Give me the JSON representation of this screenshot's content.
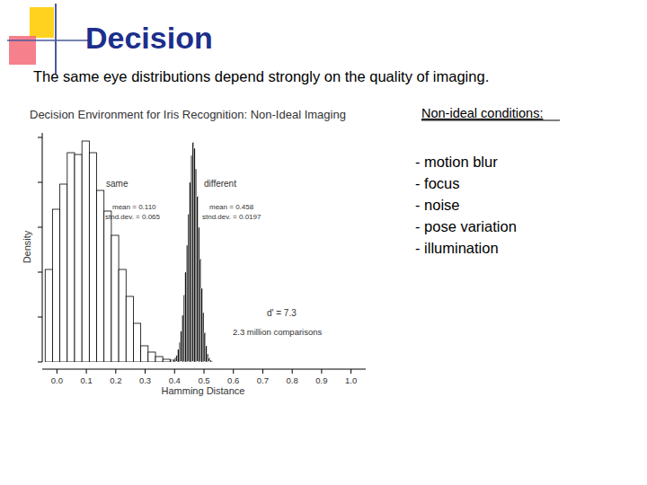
{
  "slide": {
    "title": "Decision",
    "subtitle": "The same eye distributions depend strongly on the quality of imaging.",
    "conditions_heading": "Non-ideal conditions:",
    "conditions": [
      "- motion blur",
      "- focus",
      "- noise",
      "- pose variation",
      "- illumination"
    ]
  },
  "chart_data": {
    "type": "histogram",
    "title": "Decision Environment for Iris Recognition:  Non-Ideal Imaging",
    "x_label": "Hamming Distance",
    "y_label": "Density",
    "xlim": [
      -0.05,
      1.05
    ],
    "ylim": [
      0,
      25.5
    ],
    "xticks": [
      {
        "value": 0,
        "label": "0.0"
      },
      0.1,
      0.2,
      0.3,
      0.4,
      0.5,
      0.6,
      0.7,
      0.8,
      0.9,
      {
        "value": 1,
        "label": "1.0"
      }
    ],
    "yticks": [
      0,
      5,
      10,
      15,
      20,
      25
    ],
    "tick_labels": "x",
    "grid": false,
    "series": [
      {
        "name": "same",
        "color": "#ffffff",
        "bins": [
          -0.04,
          -0.015,
          0.01,
          0.035,
          0.06,
          0.085,
          0.11,
          0.135,
          0.16,
          0.185,
          0.21,
          0.235,
          0.26,
          0.285,
          0.31,
          0.335,
          0.36,
          0.385,
          0.41
        ],
        "values": [
          10.3,
          17.0,
          19.8,
          23.3,
          23.1,
          24.6,
          23.3,
          19.1,
          16.8,
          14.1,
          10.3,
          7.3,
          4.3,
          1.8,
          1.1,
          0.6,
          0.3,
          0.2
        ]
      },
      {
        "name": "different",
        "color": "#111111",
        "bins": [
          0.39,
          0.395,
          0.4,
          0.405,
          0.41,
          0.415,
          0.42,
          0.425,
          0.43,
          0.435,
          0.44,
          0.445,
          0.45,
          0.455,
          0.46,
          0.465,
          0.47,
          0.475,
          0.48,
          0.485,
          0.49,
          0.495,
          0.5,
          0.505,
          0.51,
          0.515,
          0.52,
          0.525,
          0.53
        ],
        "values": [
          0.2,
          0.3,
          0.5,
          0.8,
          1.4,
          2.2,
          3.5,
          5.2,
          7.5,
          10.0,
          13.0,
          16.5,
          20.0,
          23.0,
          24.5,
          23.8,
          21.5,
          18.5,
          15.0,
          11.5,
          8.2,
          5.5,
          3.3,
          1.8,
          0.9,
          0.5,
          0.2,
          0.1
        ]
      }
    ],
    "annotations": [
      "mean = 0.110",
      "stnd.dev. = 0.065",
      "mean = 0.458",
      "stnd.dev. = 0.0197",
      "d' = 7.3",
      "2.3 million comparisons"
    ]
  }
}
